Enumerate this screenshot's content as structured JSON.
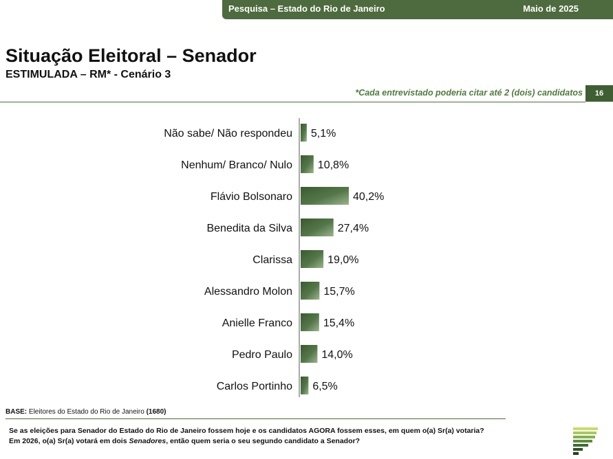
{
  "header": {
    "survey": "Pesquisa – Estado do Rio de Janeiro",
    "date": "Maio de 2025"
  },
  "title": "Situação Eleitoral – Senador",
  "subtitle": "ESTIMULADA – RM* - Cenário 3",
  "note": "*Cada entrevistado poderia citar até 2 (dois) candidatos",
  "page_number": "16",
  "base_label": "BASE:",
  "base_text": " Eleitores do Estado do Rio de Janeiro ",
  "base_count": "(1680)",
  "question_line1": "Se as eleições para Senador do Estado do Rio de Janeiro fossem hoje e os candidatos AGORA fossem esses, em quem o(a) Sr(a) votaria?",
  "question_line2_a": "Em 2026, o(a) Sr(a) votará em dois ",
  "question_line2_em": "Senadores",
  "question_line2_b": ", então quem seria o seu segundo candidato a Senador?",
  "colors": {
    "bar_dark": "#3a5a2e",
    "bar_light": "#8aa57a",
    "brand": "#4d6b3e"
  },
  "chart_data": {
    "type": "bar",
    "orientation": "horizontal",
    "categories": [
      "Não sabe/ Não respondeu",
      "Nenhum/ Branco/ Nulo",
      "Flávio Bolsonaro",
      "Benedita da Silva",
      "Clarissa",
      "Alessandro Molon",
      "Anielle Franco",
      "Pedro Paulo",
      "Carlos Portinho"
    ],
    "values": [
      5.1,
      10.8,
      40.2,
      27.4,
      19.0,
      15.7,
      15.4,
      14.0,
      6.5
    ],
    "labels": [
      "5,1%",
      "10,8%",
      "40,2%",
      "27,4%",
      "19,0%",
      "15,7%",
      "15,4%",
      "14,0%",
      "6,5%"
    ],
    "unit": "%",
    "grid": false
  }
}
